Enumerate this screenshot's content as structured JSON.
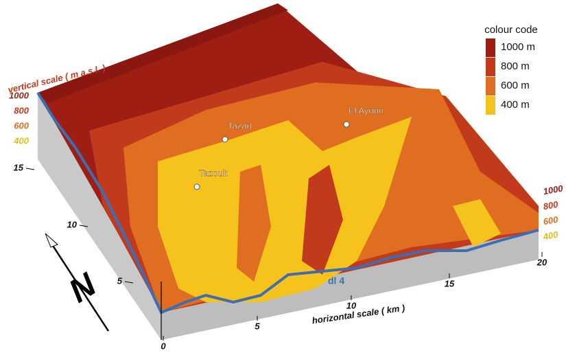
{
  "legend": {
    "title": "colour code",
    "entries": [
      {
        "label": "1000 m",
        "color": "#9e1e14"
      },
      {
        "label": "800 m",
        "color": "#c23a1c"
      },
      {
        "label": "600 m",
        "color": "#df6e20"
      },
      {
        "label": "400 m",
        "color": "#f6c31c"
      }
    ]
  },
  "vertical_scale": {
    "title": "vertical scale ( m a.s.l. )",
    "left_ticks": [
      1000,
      800,
      600,
      400
    ],
    "right_ticks": [
      1000,
      800,
      600,
      400
    ]
  },
  "depth_axis": {
    "ticks": [
      15,
      10,
      5
    ]
  },
  "horizontal_scale": {
    "title": "horizontal scale ( km )",
    "ticks": [
      0,
      5,
      10,
      15,
      20
    ]
  },
  "places": [
    "Tazart",
    "El Ayoun",
    "Tazoult"
  ],
  "river": "dl 4",
  "north": "N"
}
